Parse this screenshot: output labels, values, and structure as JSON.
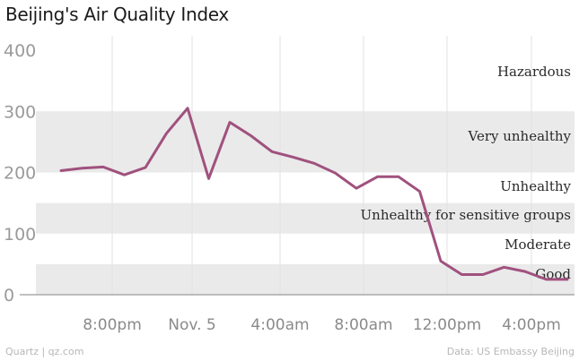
{
  "header": {
    "title": "Beijing's Air Quality Index"
  },
  "footer": {
    "source_left": "Quartz | qz.com",
    "source_right": "Data: US Embassy Beijing"
  },
  "colors": {
    "line": "#a0517e",
    "band": "#eaeaea",
    "grid": "#e2e2e2",
    "axis": "#9a9a9a"
  },
  "chart_data": {
    "type": "line",
    "title": "Beijing's Air Quality Index",
    "xlabel": "",
    "ylabel": "",
    "ylim": [
      0,
      400
    ],
    "yticks": [
      "0",
      "100",
      "200",
      "300",
      "400"
    ],
    "ytick_values": [
      0,
      100,
      200,
      300,
      400
    ],
    "xtick_labels": [
      "8:00pm",
      "Nov. 5",
      "4:00am",
      "8:00am",
      "12:00pm",
      "4:00pm"
    ],
    "bands": [
      {
        "label": "Good",
        "from": 0,
        "to": 50,
        "shaded": true
      },
      {
        "label": "Moderate",
        "from": 50,
        "to": 100,
        "shaded": false
      },
      {
        "label": "Unhealthy for sensitive groups",
        "from": 100,
        "to": 150,
        "shaded": true
      },
      {
        "label": "Unhealthy",
        "from": 150,
        "to": 200,
        "shaded": false
      },
      {
        "label": "Very unhealthy",
        "from": 200,
        "to": 300,
        "shaded": true
      },
      {
        "label": "Hazardous",
        "from": 300,
        "to": 400,
        "shaded": false
      }
    ],
    "series": [
      {
        "values": [
          203,
          207,
          209,
          196,
          208,
          264,
          305,
          190,
          282,
          260,
          234,
          225,
          215,
          199,
          174,
          193,
          193,
          169,
          55,
          33,
          33,
          45,
          38,
          25,
          25
        ]
      }
    ],
    "grid": true
  }
}
